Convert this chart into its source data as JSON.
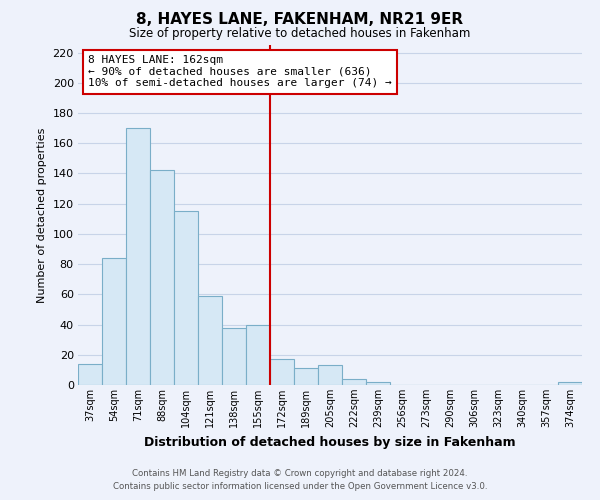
{
  "title": "8, HAYES LANE, FAKENHAM, NR21 9ER",
  "subtitle": "Size of property relative to detached houses in Fakenham",
  "xlabel": "Distribution of detached houses by size in Fakenham",
  "ylabel": "Number of detached properties",
  "bin_labels": [
    "37sqm",
    "54sqm",
    "71sqm",
    "88sqm",
    "104sqm",
    "121sqm",
    "138sqm",
    "155sqm",
    "172sqm",
    "189sqm",
    "205sqm",
    "222sqm",
    "239sqm",
    "256sqm",
    "273sqm",
    "290sqm",
    "306sqm",
    "323sqm",
    "340sqm",
    "357sqm",
    "374sqm"
  ],
  "bar_heights": [
    14,
    84,
    170,
    142,
    115,
    59,
    38,
    40,
    17,
    11,
    13,
    4,
    2,
    0,
    0,
    0,
    0,
    0,
    0,
    0,
    2
  ],
  "bar_color": "#d6e8f5",
  "bar_edge_color": "#7aaec8",
  "reference_line_color": "#cc0000",
  "annotation_line1": "8 HAYES LANE: 162sqm",
  "annotation_line2": "← 90% of detached houses are smaller (636)",
  "annotation_line3": "10% of semi-detached houses are larger (74) →",
  "annotation_box_color": "#ffffff",
  "annotation_box_edge_color": "#cc0000",
  "ylim": [
    0,
    225
  ],
  "yticks": [
    0,
    20,
    40,
    60,
    80,
    100,
    120,
    140,
    160,
    180,
    200,
    220
  ],
  "footer_line1": "Contains HM Land Registry data © Crown copyright and database right 2024.",
  "footer_line2": "Contains public sector information licensed under the Open Government Licence v3.0.",
  "bg_color": "#eef2fb",
  "grid_color": "#c8d4e8"
}
